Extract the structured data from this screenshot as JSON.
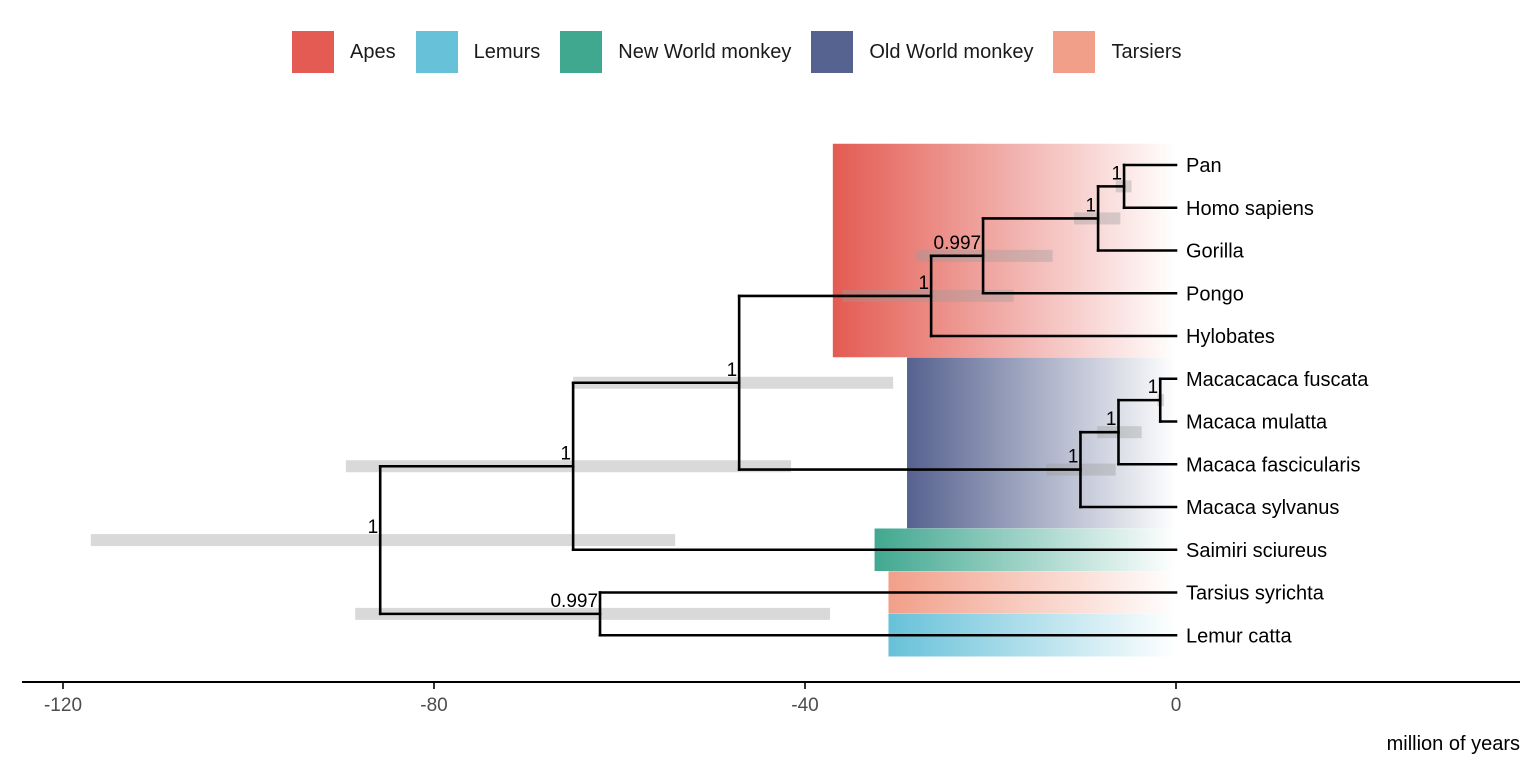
{
  "legend": [
    {
      "label": "Apes",
      "color": "#E35B52"
    },
    {
      "label": "Lemurs",
      "color": "#67C1D9"
    },
    {
      "label": "New World monkey",
      "color": "#41A890"
    },
    {
      "label": "Old World monkey",
      "color": "#56628F"
    },
    {
      "label": "Tarsiers",
      "color": "#F19F89"
    }
  ],
  "chart_data": {
    "type": "phylogenetic-tree",
    "title": "",
    "xlabel": "million of years",
    "xlim": [
      -120,
      36
    ],
    "x_ticks": [
      -120,
      -80,
      -40,
      0
    ],
    "x_tick_labels": [
      "-120",
      "-80",
      "-40",
      "0"
    ],
    "tips": [
      {
        "label": "Pan",
        "age": 0
      },
      {
        "label": "Homo sapiens",
        "age": 0
      },
      {
        "label": "Gorilla",
        "age": 0
      },
      {
        "label": "Pongo",
        "age": 0
      },
      {
        "label": "Hylobates",
        "age": 0
      },
      {
        "label": "Macacacaca fuscata",
        "age": 0
      },
      {
        "label": "Macaca mulatta",
        "age": 0
      },
      {
        "label": "Macaca fascicularis",
        "age": 0
      },
      {
        "label": "Macaca sylvanus",
        "age": 0
      },
      {
        "label": "Saimiri sciureus",
        "age": 0
      },
      {
        "label": "Tarsius syrichta",
        "age": 0
      },
      {
        "label": "Lemur catta",
        "age": 0
      }
    ],
    "nodes": [
      {
        "id": "n_pan_homo",
        "age": -5.6,
        "support": "1",
        "hpd": [
          -6.5,
          -4.8
        ],
        "children": [
          "Pan",
          "Homo sapiens"
        ]
      },
      {
        "id": "n_african_apes",
        "age": -8.4,
        "support": "1",
        "hpd": [
          -11,
          -6
        ],
        "children": [
          "n_pan_homo",
          "Gorilla"
        ]
      },
      {
        "id": "n_great_apes",
        "age": -20.8,
        "support": "0.997",
        "hpd": [
          -28,
          -13.3
        ],
        "children": [
          "n_african_apes",
          "Pongo"
        ]
      },
      {
        "id": "n_apes",
        "age": -26.4,
        "support": "1",
        "hpd": [
          -36,
          -17.5
        ],
        "children": [
          "n_great_apes",
          "Hylobates"
        ]
      },
      {
        "id": "n_fusc_mul",
        "age": -1.7,
        "support": "1",
        "hpd": [
          -2,
          -1.3
        ],
        "children": [
          "Macacacaca fuscata",
          "Macaca mulatta"
        ]
      },
      {
        "id": "n_mac_3",
        "age": -6.2,
        "support": "1",
        "hpd": [
          -8.5,
          -3.7
        ],
        "children": [
          "n_fusc_mul",
          "Macaca fascicularis"
        ]
      },
      {
        "id": "n_macaca",
        "age": -10.3,
        "support": "1",
        "hpd": [
          -14,
          -6.5
        ],
        "children": [
          "n_mac_3",
          "Macaca sylvanus"
        ]
      },
      {
        "id": "n_catarrhini",
        "age": -47.1,
        "support": "1",
        "hpd": [
          -65,
          -30.5
        ],
        "children": [
          "n_apes",
          "n_macaca"
        ]
      },
      {
        "id": "n_anthropoidea",
        "age": -65,
        "support": "1",
        "hpd": [
          -89.5,
          -41.5
        ],
        "children": [
          "n_catarrhini",
          "Saimiri sciureus"
        ]
      },
      {
        "id": "n_tarsius_lemur",
        "age": -62.1,
        "support": "0.997",
        "hpd": [
          -88.5,
          -37.3
        ],
        "children": [
          "Tarsius syrichta",
          "Lemur catta"
        ]
      },
      {
        "id": "n_root",
        "age": -85.8,
        "support": "1",
        "hpd": [
          -117,
          -54
        ],
        "children": [
          "n_anthropoidea",
          "n_tarsius_lemur"
        ]
      }
    ],
    "clade_highlights": [
      {
        "group": "Apes",
        "from_age": -37,
        "to_age": 0,
        "tips": [
          "Pan",
          "Homo sapiens",
          "Gorilla",
          "Pongo",
          "Hylobates"
        ]
      },
      {
        "group": "Old World monkey",
        "from_age": -29,
        "to_age": 0,
        "tips": [
          "Macacacaca fuscata",
          "Macaca mulatta",
          "Macaca fascicularis",
          "Macaca sylvanus"
        ]
      },
      {
        "group": "New World monkey",
        "from_age": -32.5,
        "to_age": 0,
        "tips": [
          "Saimiri sciureus"
        ]
      },
      {
        "group": "Tarsiers",
        "from_age": -31,
        "to_age": 0,
        "tips": [
          "Tarsius syrichta"
        ]
      },
      {
        "group": "Lemurs",
        "from_age": -31,
        "to_age": 0,
        "tips": [
          "Lemur catta"
        ]
      }
    ],
    "grid": false,
    "legend_position": "top"
  }
}
